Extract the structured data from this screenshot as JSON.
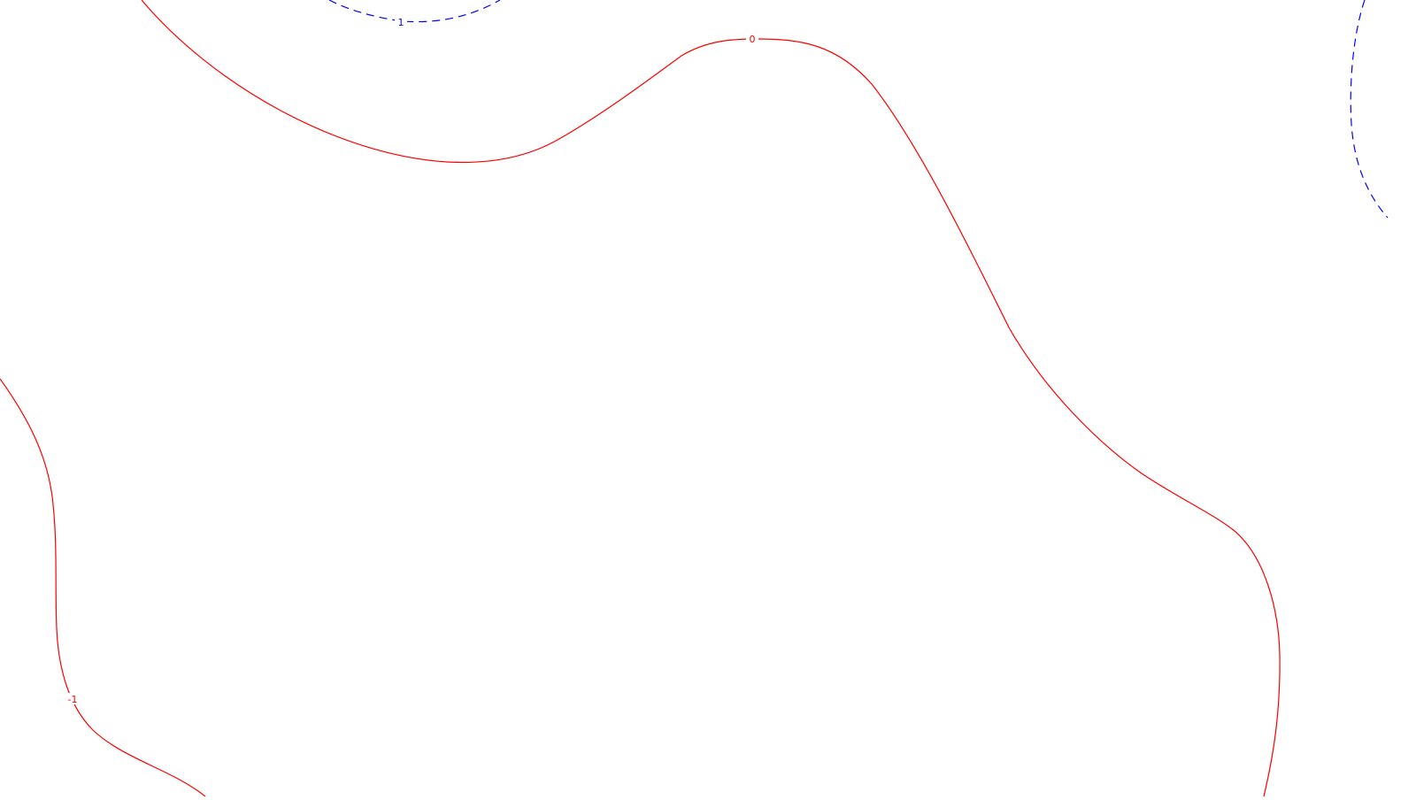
{
  "map": {
    "background_color": "#ffffff",
    "contours": [
      {
        "id": "contour-zero",
        "level_label": "0",
        "color": "#ff0000",
        "line_style": "solid"
      },
      {
        "id": "contour-neg-one",
        "level_label": "-1",
        "color": "#ff0000",
        "line_style": "solid"
      },
      {
        "id": "contour-pos-one-top",
        "level_label": "1",
        "color": "#0000ff",
        "line_style": "dashed"
      },
      {
        "id": "contour-pos-one-right",
        "level_label": "",
        "color": "#0000ff",
        "line_style": "dashed"
      }
    ]
  }
}
